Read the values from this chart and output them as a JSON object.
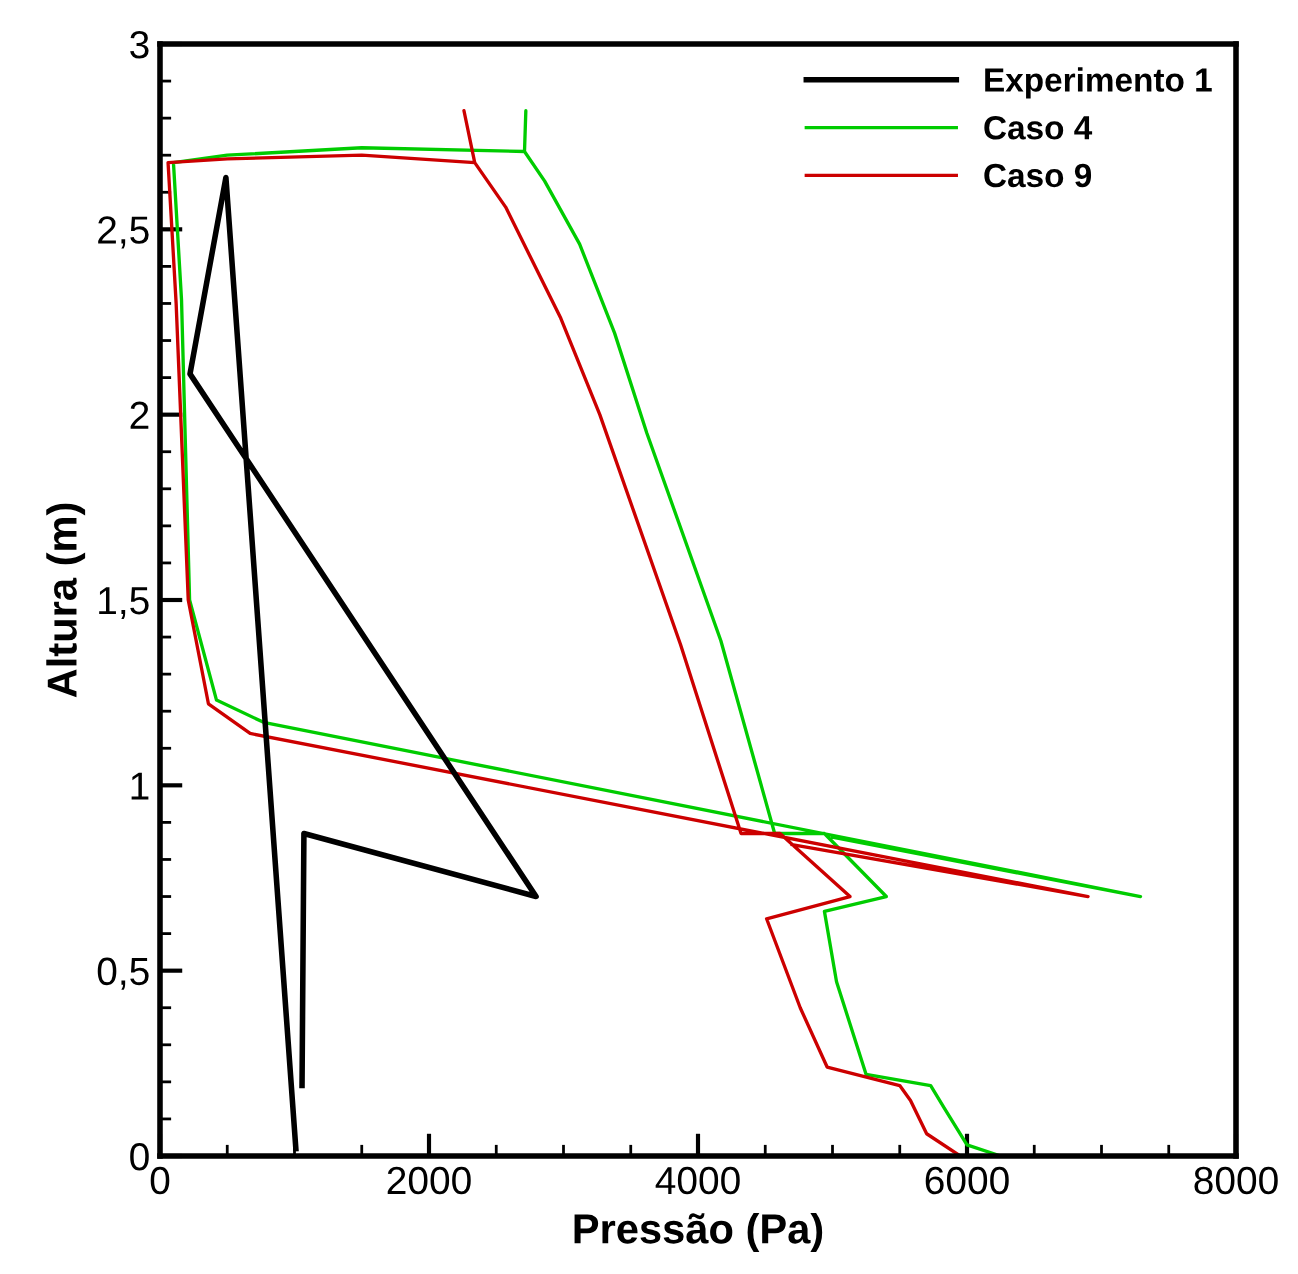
{
  "chart_data": {
    "type": "line",
    "xlabel": "Pressão (Pa)",
    "ylabel": "Altura (m)",
    "xlim": [
      0,
      8000
    ],
    "ylim": [
      0,
      3
    ],
    "xticks": [
      0,
      2000,
      4000,
      6000,
      8000
    ],
    "yticks": [
      0,
      {
        "value": 0.5,
        "label": "0,5"
      },
      1,
      {
        "value": 1.5,
        "label": "1,5"
      },
      2,
      {
        "value": 2.5,
        "label": "2,5"
      },
      3
    ],
    "grid": false,
    "legend": "top right",
    "marker": "none",
    "line_style": "solid",
    "series": [
      {
        "name": "Experimento 1",
        "color": "#000000",
        "x": [
          1010,
          490,
          223,
          2796,
          1070,
          1056
        ],
        "values": [
          0.02,
          2.64,
          2.11,
          0.7,
          0.87,
          0.19
        ]
      },
      {
        "name": "Caso 4",
        "color": "#00cc00",
        "x": [
          6250,
          6000,
          5830,
          5730,
          5250,
          5030,
          4940,
          5400,
          4940,
          4570,
          4170,
          3620,
          3380,
          3120,
          2860,
          2710,
          2720,
          2710,
          1500,
          500,
          100,
          160,
          220,
          420,
          770,
          7290,
          5000
        ],
        "values": [
          0.0,
          0.03,
          0.13,
          0.19,
          0.22,
          0.47,
          0.66,
          0.7,
          0.87,
          0.87,
          1.39,
          1.95,
          2.22,
          2.46,
          2.63,
          2.71,
          2.82,
          2.71,
          2.72,
          2.7,
          2.68,
          2.31,
          1.5,
          1.23,
          1.17,
          0.7,
          0.86
        ]
      },
      {
        "name": "Caso 9",
        "color": "#cc0000",
        "x": [
          5950,
          5700,
          5580,
          5500,
          4960,
          4760,
          4510,
          5130,
          4610,
          4320,
          3870,
          3270,
          2980,
          2570,
          2340,
          2260,
          2340,
          1500,
          500,
          60,
          120,
          210,
          360,
          670,
          6900,
          4700
        ],
        "values": [
          0.0,
          0.06,
          0.15,
          0.19,
          0.24,
          0.4,
          0.64,
          0.7,
          0.87,
          0.87,
          1.38,
          2.0,
          2.26,
          2.56,
          2.68,
          2.82,
          2.68,
          2.7,
          2.69,
          2.68,
          2.3,
          1.5,
          1.22,
          1.14,
          0.7,
          0.84
        ]
      }
    ]
  }
}
